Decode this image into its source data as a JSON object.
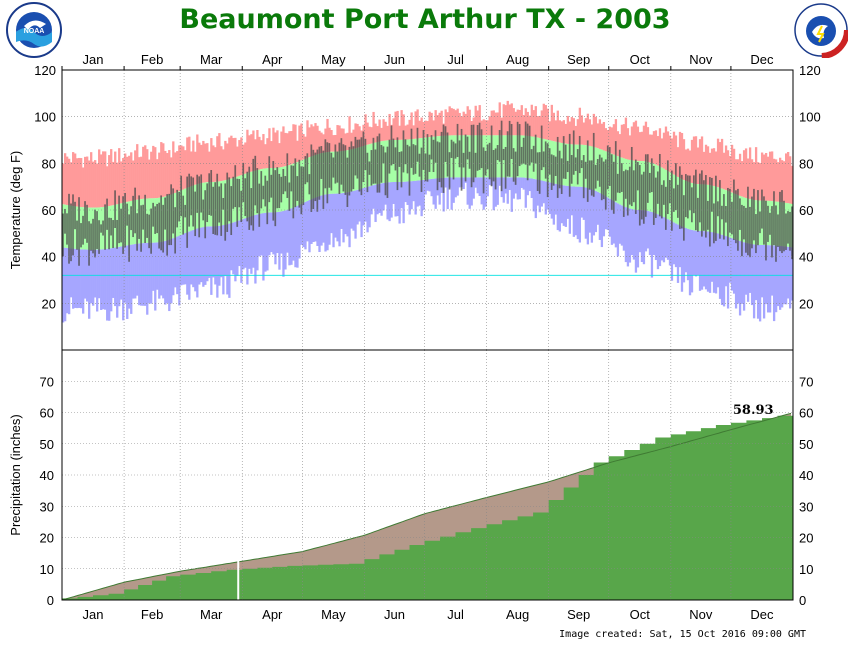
{
  "title": "Beaumont Port Arthur TX - 2003",
  "footer": "Image created: Sat, 15 Oct 2016 09:00 GMT",
  "logos": {
    "left": "NOAA",
    "right": "NATIONAL WEATHER SERVICE"
  },
  "colors": {
    "title": "#0a7a0a",
    "record_range": "#ff9a9a",
    "normal_range": "#a6ffa6",
    "record_low_band": "#a6a6ff",
    "daily_temp_bar": "#4d4d4d",
    "freezing_line": "#00e0e0",
    "normal_precip": "#b4998a",
    "actual_precip": "#58a64a"
  },
  "chart_data": [
    {
      "type": "bar",
      "name": "temperature",
      "ylabel": "Temperature (deg F)",
      "ylim": [
        0,
        120
      ],
      "yticks": [
        20,
        40,
        60,
        80,
        100,
        120
      ],
      "months": [
        "Jan",
        "Feb",
        "Mar",
        "Apr",
        "May",
        "Jun",
        "Jul",
        "Aug",
        "Sep",
        "Oct",
        "Nov",
        "Dec"
      ],
      "freezing_line": 32,
      "normal_high_monthly": [
        61,
        65,
        72,
        78,
        85,
        90,
        92,
        92,
        88,
        81,
        71,
        64
      ],
      "normal_low_monthly": [
        43,
        46,
        53,
        59,
        67,
        72,
        74,
        74,
        70,
        60,
        51,
        45
      ],
      "record_high_monthly": [
        82,
        85,
        89,
        92,
        96,
        99,
        101,
        103,
        100,
        95,
        88,
        83
      ],
      "record_low_monthly": [
        17,
        20,
        26,
        36,
        48,
        58,
        66,
        64,
        52,
        38,
        27,
        18
      ],
      "grid": true
    },
    {
      "type": "area",
      "name": "precipitation",
      "ylabel": "Precipitation (inches)",
      "ylim": [
        0,
        80
      ],
      "yticks": [
        0,
        10,
        20,
        30,
        40,
        50,
        60,
        70
      ],
      "months": [
        "Jan",
        "Feb",
        "Mar",
        "Apr",
        "May",
        "Jun",
        "Jul",
        "Aug",
        "Sep",
        "Oct",
        "Nov",
        "Dec"
      ],
      "normal_cumulative_end_of_month": [
        5.7,
        9.2,
        12.4,
        15.5,
        20.7,
        27.6,
        32.8,
        37.8,
        43.9,
        49.1,
        54.5,
        59.9
      ],
      "actual_cumulative_end_of_month": [
        2.0,
        7.6,
        9.7,
        10.9,
        11.6,
        17.6,
        23.0,
        28.0,
        44.0,
        52.0,
        56.0,
        58.93
      ],
      "annotation": "58.93",
      "grid": true
    }
  ]
}
